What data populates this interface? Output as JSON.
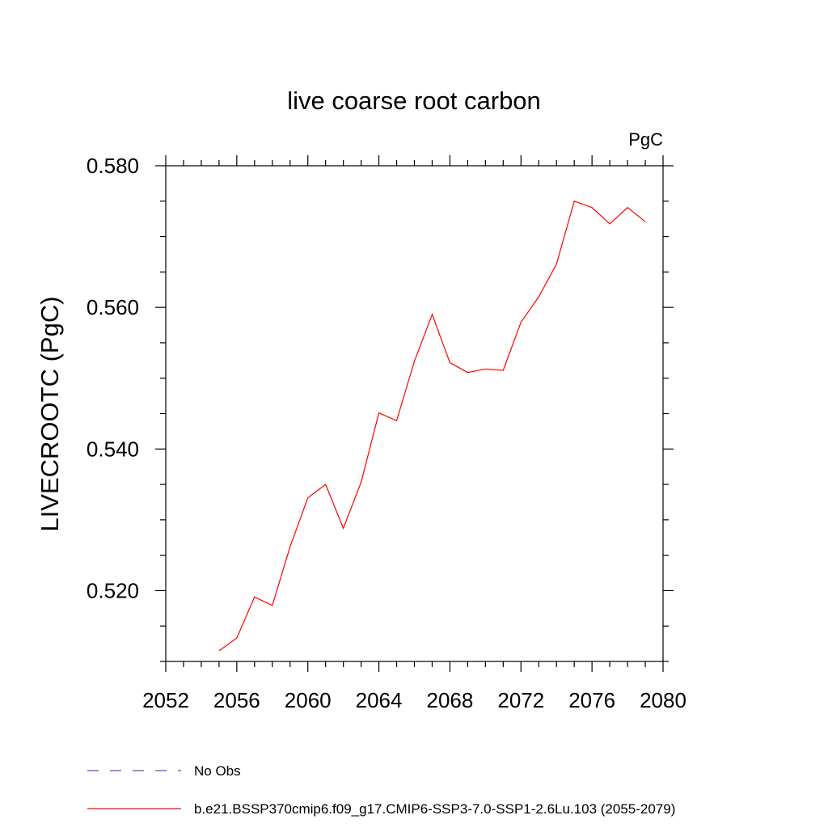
{
  "chart_data": {
    "type": "line",
    "title": "live coarse root carbon",
    "units": "PgC",
    "ylabel": "LIVECROOTC  (PgC)",
    "xlabel": "",
    "xlim": [
      2052,
      2080
    ],
    "ylim": [
      0.51,
      0.58
    ],
    "x_ticks": [
      2052,
      2056,
      2060,
      2064,
      2068,
      2072,
      2076,
      2080
    ],
    "x_tick_labels": [
      "2052",
      "2056",
      "2060",
      "2064",
      "2068",
      "2072",
      "2076",
      "2080"
    ],
    "y_ticks": [
      0.52,
      0.54,
      0.56,
      0.58
    ],
    "y_tick_labels": [
      "0.520",
      "0.540",
      "0.560",
      "0.580"
    ],
    "grid": false,
    "series": [
      {
        "name": "b.e21.BSSP370cmip6.f09_g17.CMIP6-SSP3-7.0-SSP1-2.6Lu.103 (2055-2079)",
        "color": "#ff0000",
        "style": "solid",
        "x": [
          2055,
          2056,
          2057,
          2058,
          2059,
          2060,
          2061,
          2062,
          2063,
          2064,
          2065,
          2066,
          2067,
          2068,
          2069,
          2070,
          2071,
          2072,
          2073,
          2074,
          2075,
          2076,
          2077,
          2078,
          2079
        ],
        "y": [
          0.5115,
          0.5133,
          0.5191,
          0.5179,
          0.5262,
          0.5331,
          0.535,
          0.5288,
          0.5353,
          0.5451,
          0.544,
          0.5524,
          0.559,
          0.5522,
          0.5508,
          0.5513,
          0.5511,
          0.5579,
          0.5615,
          0.5661,
          0.575,
          0.5741,
          0.5718,
          0.5741,
          0.5721
        ]
      }
    ],
    "legend": {
      "placement": "bottom",
      "entries": [
        {
          "label": "No Obs",
          "color": "#5555aa",
          "style": "dashed"
        },
        {
          "label": "b.e21.BSSP370cmip6.f09_g17.CMIP6-SSP3-7.0-SSP1-2.6Lu.103 (2055-2079)",
          "color": "#ff0000",
          "style": "solid"
        }
      ]
    }
  }
}
